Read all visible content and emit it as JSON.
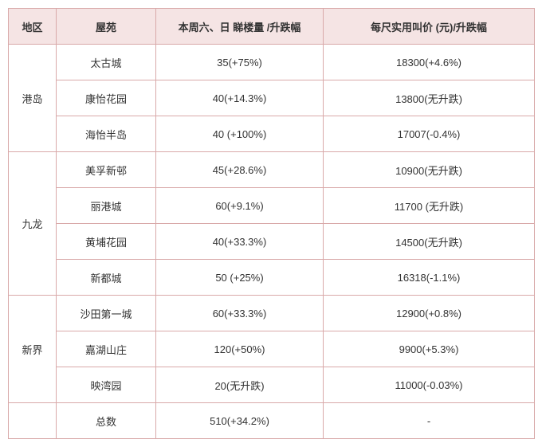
{
  "header": {
    "region": "地区",
    "estate": "屋苑",
    "views": "本周六、日 睇楼量 /升跌幅",
    "price": "每尺实用叫价 (元)/升跌幅"
  },
  "colors": {
    "border": "#d9a9a9",
    "header_bg": "#f5e4e4",
    "text": "#333333",
    "bg": "#ffffff"
  },
  "regions": [
    {
      "name": "港岛",
      "rows": [
        {
          "estate": "太古城",
          "views": "35(+75%)",
          "price": "18300(+4.6%)"
        },
        {
          "estate": "康怡花园",
          "views": "40(+14.3%)",
          "price": "13800(无升跌)"
        },
        {
          "estate": "海怡半岛",
          "views": "40 (+100%)",
          "price": "17007(-0.4%)"
        }
      ]
    },
    {
      "name": "九龙",
      "rows": [
        {
          "estate": "美孚新邨",
          "views": "45(+28.6%)",
          "price": "10900(无升跌)"
        },
        {
          "estate": "丽港城",
          "views": "60(+9.1%)",
          "price": "11700 (无升跌)"
        },
        {
          "estate": "黄埔花园",
          "views": "40(+33.3%)",
          "price": "14500(无升跌)"
        },
        {
          "estate": "新都城",
          "views": "50 (+25%)",
          "price": "16318(-1.1%)"
        }
      ]
    },
    {
      "name": "新界",
      "rows": [
        {
          "estate": "沙田第一城",
          "views": "60(+33.3%)",
          "price": "12900(+0.8%)"
        },
        {
          "estate": "嘉湖山庄",
          "views": "120(+50%)",
          "price": "9900(+5.3%)"
        },
        {
          "estate": "映湾园",
          "views": "20(无升跌)",
          "price": "11000(-0.03%)"
        }
      ]
    }
  ],
  "total": {
    "label": "总数",
    "views": "510(+34.2%)",
    "price": "-"
  }
}
